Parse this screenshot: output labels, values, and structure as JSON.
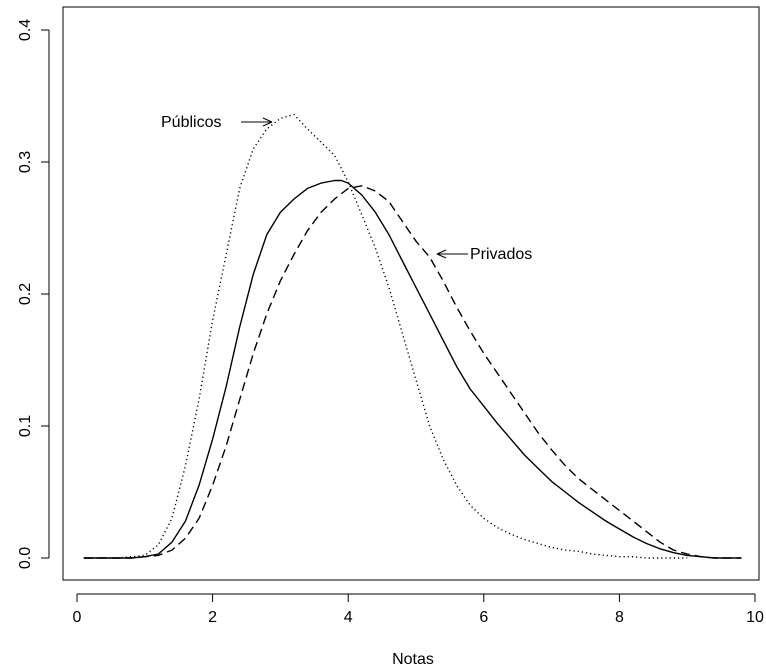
{
  "chart_data": {
    "type": "line",
    "title": "",
    "xlabel": "Notas",
    "ylabel": "",
    "xlim": [
      0,
      10
    ],
    "ylim": [
      0,
      0.4
    ],
    "xticks": [
      "0",
      "2",
      "4",
      "6",
      "8",
      "10"
    ],
    "yticks": [
      "0.0",
      "0.1",
      "0.2",
      "0.3",
      "0.4"
    ],
    "grid": false,
    "legend": "none",
    "series": [
      {
        "name": "Públicos",
        "line_style": "dotted",
        "x": [
          0.1,
          0.6,
          1.0,
          1.2,
          1.4,
          1.6,
          1.8,
          2.0,
          2.2,
          2.4,
          2.6,
          2.8,
          3.0,
          3.2,
          3.4,
          3.6,
          3.8,
          4.0,
          4.2,
          4.4,
          4.6,
          4.8,
          5.0,
          5.2,
          5.4,
          5.6,
          5.8,
          6.0,
          6.2,
          6.4,
          6.6,
          6.8,
          7.0,
          7.2,
          7.4,
          7.6,
          7.8,
          8.0,
          8.2,
          8.4,
          8.6,
          8.8,
          9.0
        ],
        "y": [
          0.0,
          0.0,
          0.002,
          0.01,
          0.03,
          0.07,
          0.12,
          0.18,
          0.23,
          0.28,
          0.31,
          0.325,
          0.333,
          0.336,
          0.325,
          0.315,
          0.305,
          0.285,
          0.26,
          0.235,
          0.205,
          0.17,
          0.135,
          0.1,
          0.075,
          0.055,
          0.04,
          0.03,
          0.023,
          0.018,
          0.014,
          0.011,
          0.008,
          0.006,
          0.005,
          0.003,
          0.002,
          0.001,
          0.001,
          0.0,
          0.0,
          0.0,
          0.0
        ]
      },
      {
        "name": "",
        "line_style": "solid",
        "x": [
          0.1,
          0.5,
          0.8,
          1.0,
          1.2,
          1.4,
          1.6,
          1.8,
          2.0,
          2.2,
          2.4,
          2.6,
          2.8,
          3.0,
          3.2,
          3.4,
          3.6,
          3.8,
          3.9,
          4.0,
          4.2,
          4.4,
          4.6,
          4.8,
          5.0,
          5.2,
          5.4,
          5.6,
          5.8,
          6.0,
          6.2,
          6.4,
          6.6,
          6.8,
          7.0,
          7.2,
          7.4,
          7.6,
          7.8,
          8.0,
          8.2,
          8.4,
          8.6,
          8.8,
          9.0,
          9.2,
          9.4,
          9.6,
          9.8
        ],
        "y": [
          0.0,
          0.0,
          0.0,
          0.001,
          0.003,
          0.012,
          0.028,
          0.055,
          0.09,
          0.13,
          0.175,
          0.215,
          0.245,
          0.262,
          0.272,
          0.28,
          0.284,
          0.286,
          0.286,
          0.284,
          0.275,
          0.262,
          0.245,
          0.225,
          0.205,
          0.185,
          0.165,
          0.145,
          0.128,
          0.115,
          0.102,
          0.09,
          0.078,
          0.068,
          0.058,
          0.05,
          0.042,
          0.035,
          0.028,
          0.022,
          0.016,
          0.011,
          0.007,
          0.004,
          0.002,
          0.001,
          0.0,
          0.0,
          0.0
        ]
      },
      {
        "name": "Privados",
        "line_style": "dashed",
        "x": [
          0.1,
          0.8,
          1.2,
          1.4,
          1.6,
          1.8,
          2.0,
          2.2,
          2.4,
          2.6,
          2.8,
          3.0,
          3.2,
          3.4,
          3.6,
          3.8,
          4.0,
          4.2,
          4.4,
          4.6,
          4.8,
          5.0,
          5.2,
          5.4,
          5.6,
          5.8,
          6.0,
          6.2,
          6.4,
          6.6,
          6.8,
          7.0,
          7.2,
          7.4,
          7.6,
          7.8,
          8.0,
          8.2,
          8.4,
          8.6,
          8.8,
          9.0,
          9.2,
          9.4,
          9.6,
          9.8
        ],
        "y": [
          0.0,
          0.0,
          0.002,
          0.006,
          0.015,
          0.03,
          0.055,
          0.085,
          0.12,
          0.155,
          0.185,
          0.21,
          0.23,
          0.248,
          0.262,
          0.272,
          0.28,
          0.282,
          0.278,
          0.27,
          0.255,
          0.24,
          0.228,
          0.21,
          0.19,
          0.172,
          0.155,
          0.14,
          0.125,
          0.11,
          0.095,
          0.082,
          0.07,
          0.06,
          0.052,
          0.044,
          0.036,
          0.028,
          0.02,
          0.012,
          0.006,
          0.003,
          0.001,
          0.0,
          0.0,
          0.0
        ]
      }
    ],
    "annotations": [
      {
        "text": "Públicos",
        "points_to_series": "Públicos"
      },
      {
        "text": "Privados",
        "points_to_series": "Privados"
      }
    ]
  }
}
